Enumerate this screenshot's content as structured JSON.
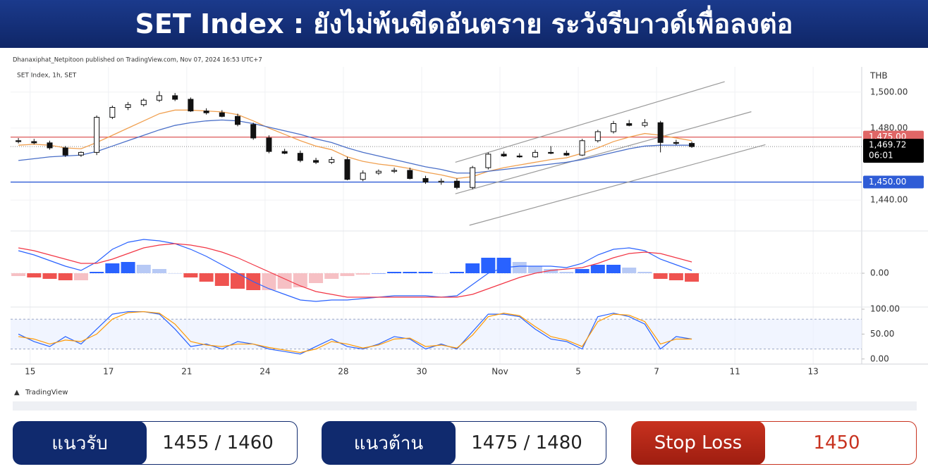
{
  "header": {
    "title": "SET Index : ยังไม่พ้นขีดอันตราย ระวังรีบาวด์เพื่อลงต่อ"
  },
  "footer": {
    "brand": "TradingView"
  },
  "chart_data": [
    {
      "type": "candlestick",
      "publisher": "Dhanaxiphat_Netpitoon published on TradingView.com, Nov 07, 2024 16:53 UTC+7",
      "legend": "SET Index, 1h, SET",
      "currency": "THB",
      "x": [
        1,
        3,
        5,
        7,
        9,
        11,
        13,
        15,
        17,
        19,
        21,
        23,
        25,
        27,
        29,
        31,
        33,
        35,
        37,
        39,
        41,
        43,
        45,
        47,
        49,
        51,
        53,
        55,
        57,
        59,
        61,
        63,
        65,
        67,
        69,
        71,
        73,
        75,
        77,
        79,
        81,
        83,
        85,
        87
      ],
      "open": [
        1473,
        1472.5,
        1471.8,
        1469,
        1465,
        1466.5,
        1486,
        1491.5,
        1493,
        1495.5,
        1498,
        1496,
        1489.5,
        1488.5,
        1486.5,
        1482,
        1474.5,
        1467,
        1466,
        1462,
        1461,
        1462.5,
        1451.5,
        1455,
        1456,
        1456.5,
        1452,
        1450,
        1450.5,
        1447,
        1458,
        1465.5,
        1464.5,
        1464,
        1466.5,
        1466,
        1465,
        1473,
        1478,
        1482.5,
        1481.5,
        1483,
        1472,
        1471.5
      ],
      "high": [
        1474.5,
        1474,
        1473,
        1470,
        1467,
        1487,
        1492.5,
        1494.5,
        1496.5,
        1500.5,
        1499.5,
        1497,
        1491,
        1490,
        1488,
        1483,
        1476,
        1468.5,
        1467.5,
        1463.5,
        1464,
        1464,
        1456.5,
        1457,
        1458,
        1458,
        1453.5,
        1452,
        1452,
        1459,
        1466.5,
        1467,
        1466,
        1468,
        1470,
        1467.5,
        1474,
        1479,
        1484,
        1484.5,
        1485,
        1484,
        1473.5,
        1472.5
      ],
      "low": [
        1471.5,
        1471,
        1468,
        1464,
        1464,
        1465,
        1485,
        1490,
        1492,
        1494.5,
        1495,
        1489,
        1487.5,
        1486,
        1481,
        1473.5,
        1466,
        1465.5,
        1461,
        1460,
        1460,
        1451,
        1450.5,
        1454,
        1455,
        1451.5,
        1449,
        1448.5,
        1446,
        1446,
        1457,
        1464,
        1463.5,
        1463.5,
        1465.5,
        1464.5,
        1464.5,
        1472,
        1477,
        1481,
        1480.5,
        1466.5,
        1470.5,
        1469
      ],
      "close": [
        1472.5,
        1471.8,
        1469,
        1465,
        1466.5,
        1486,
        1491.5,
        1493,
        1495.5,
        1498,
        1496,
        1489.5,
        1488.5,
        1486.5,
        1482,
        1474.5,
        1467,
        1466,
        1462,
        1461,
        1462.5,
        1451.5,
        1455,
        1456,
        1456.5,
        1452,
        1450,
        1450.5,
        1447,
        1458,
        1465.5,
        1464.5,
        1464,
        1466.5,
        1466,
        1465,
        1473,
        1478,
        1482.5,
        1481.5,
        1483,
        1472,
        1471.5,
        1469.72
      ],
      "up_color": "#ffffff",
      "down_color": "#111111",
      "lines": [
        {
          "color": "#f0a050",
          "values": [
            1470.5,
            1471,
            1470.5,
            1469,
            1468.5,
            1472,
            1476,
            1480,
            1484,
            1488,
            1490,
            1490,
            1489.5,
            1489,
            1487.5,
            1484,
            1480,
            1476.5,
            1473,
            1470,
            1468,
            1464,
            1461.5,
            1460,
            1459,
            1457.5,
            1455.5,
            1454,
            1452,
            1453,
            1456,
            1458,
            1459.5,
            1461,
            1462.5,
            1463.5,
            1466,
            1469,
            1472.5,
            1475,
            1477,
            1476,
            1474.5,
            1473
          ]
        },
        {
          "color": "#4a6fc8",
          "values": [
            1462,
            1463,
            1464,
            1464.5,
            1465,
            1467,
            1470,
            1473,
            1476,
            1479,
            1481.5,
            1483,
            1484,
            1484.5,
            1484,
            1482.5,
            1480.5,
            1478.5,
            1476.5,
            1474,
            1472,
            1469,
            1466.5,
            1464.5,
            1462.5,
            1460.5,
            1458.5,
            1457,
            1455,
            1455,
            1456,
            1457,
            1458,
            1459,
            1460,
            1461,
            1462.5,
            1464.5,
            1466.5,
            1468.5,
            1470,
            1470.5,
            1470.5,
            1470.5
          ]
        }
      ],
      "channels": [
        {
          "x": [
            56.8,
            91.2
          ],
          "y": [
            1461,
            1505.8
          ]
        },
        {
          "x": [
            56.8,
            94.6
          ],
          "y": [
            1443.5,
            1489.1
          ]
        },
        {
          "x": [
            58.6,
            96.4
          ],
          "y": [
            1426,
            1470.8
          ]
        }
      ],
      "channel_color": "#9a9a9a",
      "levels": [
        {
          "value": 1475,
          "label": "1,475.00",
          "color": "#e06666"
        },
        {
          "value": 1450,
          "label": "1,450.00",
          "color": "#2f5cd6"
        }
      ],
      "last_price": {
        "value": 1469.72,
        "label": "1,469.72",
        "countdown": "06:01"
      },
      "xlim": [
        0,
        108.7
      ],
      "xticks": [
        {
          "value": 2.5,
          "label": "15"
        },
        {
          "value": 12.5,
          "label": "17"
        },
        {
          "value": 22.5,
          "label": "21"
        },
        {
          "value": 32.5,
          "label": "24"
        },
        {
          "value": 42.5,
          "label": "28"
        },
        {
          "value": 52.5,
          "label": "30"
        },
        {
          "value": 62.5,
          "label": "Nov"
        },
        {
          "value": 72.5,
          "label": "5"
        },
        {
          "value": 82.5,
          "label": "7"
        },
        {
          "value": 92.5,
          "label": "11"
        },
        {
          "value": 102.5,
          "label": "13"
        }
      ],
      "ylim": [
        1424,
        1514
      ],
      "yticks": [
        {
          "value": 1500,
          "label": "1,500.00"
        },
        {
          "value": 1480,
          "label": "1,480.00"
        },
        {
          "value": 1440,
          "label": "1,440.00"
        }
      ],
      "grid": true
    },
    {
      "type": "macd",
      "histogram": [
        -1,
        -1.5,
        -2,
        -2.5,
        -2.5,
        0.5,
        3.5,
        4,
        3,
        1.5,
        0,
        -1.5,
        -3,
        -4.5,
        -5.5,
        -6,
        -6,
        -5.5,
        -5,
        -3.5,
        -2,
        -1,
        -0.5,
        0,
        0.5,
        0.5,
        0.5,
        0,
        0.5,
        3.5,
        5.5,
        5.5,
        4,
        2.5,
        1.5,
        0.5,
        1.5,
        3,
        3,
        2,
        0.5,
        -2,
        -2.5,
        -3
      ],
      "histogram_colors": [
        "#2962ff",
        "#b7c9f5",
        "#f6c0c4",
        "#ef5350"
      ],
      "lines": [
        {
          "color": "#2962ff",
          "values": [
            8,
            6.5,
            4.5,
            2.5,
            1,
            4,
            8.5,
            11,
            12,
            11.5,
            10.5,
            8.5,
            6,
            3,
            0,
            -3,
            -5.5,
            -7.5,
            -9.5,
            -10,
            -9.5,
            -9.5,
            -9,
            -8.5,
            -8,
            -8,
            -8,
            -8.5,
            -8,
            -4,
            0,
            2,
            2.5,
            2.5,
            2.5,
            2,
            3.5,
            6.5,
            8.5,
            9,
            8,
            5,
            3,
            1
          ]
        },
        {
          "color": "#f23645",
          "values": [
            9,
            8,
            6.5,
            5,
            3.5,
            3.5,
            5,
            7,
            9,
            10,
            10.5,
            10,
            9,
            7.5,
            5.5,
            3,
            0.5,
            -2,
            -4.5,
            -6.5,
            -7.5,
            -8.5,
            -8.5,
            -8.5,
            -8.5,
            -8.5,
            -8.5,
            -8.5,
            -8.5,
            -7.5,
            -5.5,
            -3.5,
            -1.5,
            0,
            1,
            1.5,
            2,
            3.5,
            5.5,
            7,
            7.5,
            7,
            5.5,
            4
          ]
        }
      ],
      "ylim": [
        -11.75,
        14.5
      ],
      "yticks": [
        {
          "value": 0,
          "label": "0.00"
        }
      ]
    },
    {
      "type": "stochastic",
      "lines": [
        {
          "color": "#2962ff",
          "values": [
            50,
            35,
            25,
            45,
            30,
            60,
            90,
            95,
            95,
            90,
            60,
            25,
            30,
            20,
            35,
            30,
            20,
            15,
            10,
            25,
            40,
            25,
            20,
            30,
            45,
            40,
            20,
            30,
            20,
            55,
            90,
            90,
            85,
            60,
            40,
            35,
            20,
            85,
            92,
            85,
            70,
            20,
            45,
            40
          ]
        },
        {
          "color": "#ff9800",
          "values": [
            45,
            40,
            30,
            38,
            35,
            50,
            80,
            93,
            95,
            92,
            70,
            35,
            28,
            25,
            30,
            30,
            23,
            18,
            13,
            20,
            35,
            30,
            22,
            28,
            40,
            42,
            25,
            28,
            22,
            48,
            85,
            92,
            87,
            65,
            45,
            38,
            25,
            75,
            90,
            88,
            75,
            30,
            40,
            40
          ]
        }
      ],
      "band": [
        20,
        80
      ],
      "band_color": "#e8efff",
      "ylim": [
        -7.4,
        102.9
      ],
      "yticks": [
        {
          "value": 100,
          "label": "100.00"
        },
        {
          "value": 50,
          "label": "50.00"
        },
        {
          "value": 0,
          "label": "0.00"
        }
      ]
    }
  ],
  "levels_panel": [
    {
      "label": "แนวรับ",
      "text": "1455 / 1460"
    },
    {
      "label": "แนวต้าน",
      "text": "1475 / 1480"
    },
    {
      "label": "Stop Loss",
      "text": "1450"
    }
  ]
}
